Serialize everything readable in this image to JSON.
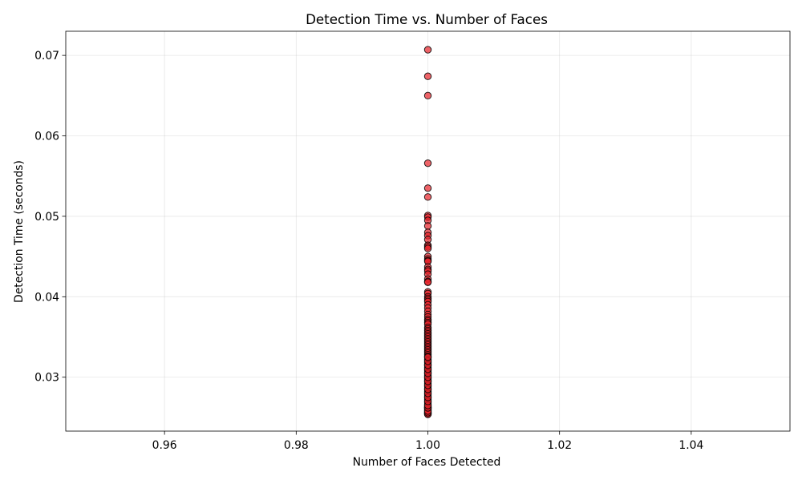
{
  "chart_data": {
    "type": "scatter",
    "title": "Detection Time vs. Number of Faces",
    "xlabel": "Number of Faces Detected",
    "ylabel": "Detection Time (seconds)",
    "xlim": [
      0.945,
      1.055
    ],
    "ylim": [
      0.0233,
      0.073
    ],
    "xticks": [
      0.96,
      0.98,
      1.0,
      1.02,
      1.04
    ],
    "xtick_labels": [
      "0.96",
      "0.98",
      "1.00",
      "1.02",
      "1.04"
    ],
    "yticks": [
      0.03,
      0.04,
      0.05,
      0.06,
      0.07
    ],
    "ytick_labels": [
      "0.03",
      "0.04",
      "0.05",
      "0.06",
      "0.07"
    ],
    "grid": true,
    "marker_color": "#e8222a",
    "marker_edge_color": "#000000",
    "marker_alpha": 0.7,
    "series": [
      {
        "x": [
          1,
          1,
          1,
          1,
          1,
          1,
          1,
          1,
          1,
          1,
          1,
          1,
          1,
          1,
          1,
          1,
          1,
          1,
          1,
          1,
          1,
          1,
          1,
          1,
          1,
          1,
          1,
          1,
          1,
          1,
          1,
          1,
          1,
          1,
          1,
          1,
          1,
          1,
          1,
          1,
          1,
          1,
          1,
          1,
          1,
          1,
          1,
          1,
          1,
          1,
          1,
          1,
          1,
          1,
          1,
          1,
          1,
          1,
          1,
          1,
          1,
          1,
          1,
          1,
          1,
          1,
          1,
          1,
          1,
          1,
          1,
          1,
          1,
          1,
          1,
          1,
          1,
          1,
          1,
          1,
          1,
          1,
          1,
          1,
          1,
          1,
          1,
          1,
          1,
          1,
          1,
          1,
          1,
          1,
          1,
          1,
          1,
          1,
          1,
          1,
          1,
          1,
          1,
          1,
          1,
          1,
          1,
          1,
          1,
          1,
          1,
          1,
          1,
          1,
          1,
          1,
          1,
          1,
          1,
          1
        ],
        "y": [
          0.0707,
          0.0674,
          0.065,
          0.0566,
          0.0535,
          0.0524,
          0.0501,
          0.0499,
          0.0495,
          0.0488,
          0.048,
          0.0476,
          0.0471,
          0.0464,
          0.0462,
          0.046,
          0.045,
          0.0447,
          0.0445,
          0.0444,
          0.0437,
          0.0434,
          0.0432,
          0.0428,
          0.0422,
          0.0419,
          0.0418,
          0.0406,
          0.0404,
          0.04,
          0.0398,
          0.0396,
          0.0394,
          0.039,
          0.0386,
          0.0382,
          0.0378,
          0.0375,
          0.0372,
          0.037,
          0.0368,
          0.0366,
          0.0362,
          0.036,
          0.0358,
          0.0356,
          0.0354,
          0.0352,
          0.035,
          0.0348,
          0.0346,
          0.0344,
          0.0342,
          0.034,
          0.0338,
          0.0336,
          0.0334,
          0.0332,
          0.033,
          0.0328,
          0.0326,
          0.0324,
          0.0322,
          0.032,
          0.0318,
          0.0316,
          0.0314,
          0.0312,
          0.031,
          0.0308,
          0.0306,
          0.0304,
          0.0302,
          0.03,
          0.0298,
          0.0296,
          0.0294,
          0.0292,
          0.029,
          0.0288,
          0.0286,
          0.0284,
          0.0282,
          0.028,
          0.0278,
          0.0276,
          0.0274,
          0.0272,
          0.027,
          0.0268,
          0.0266,
          0.0264,
          0.0263,
          0.0262,
          0.0261,
          0.026,
          0.0259,
          0.0258,
          0.0257,
          0.0256,
          0.0255,
          0.0255,
          0.0254,
          0.0254,
          0.0256,
          0.0258,
          0.0262,
          0.0265,
          0.027,
          0.0275,
          0.028,
          0.0285,
          0.029,
          0.0295,
          0.03,
          0.0305,
          0.031,
          0.0315,
          0.032,
          0.0325
        ]
      }
    ]
  }
}
